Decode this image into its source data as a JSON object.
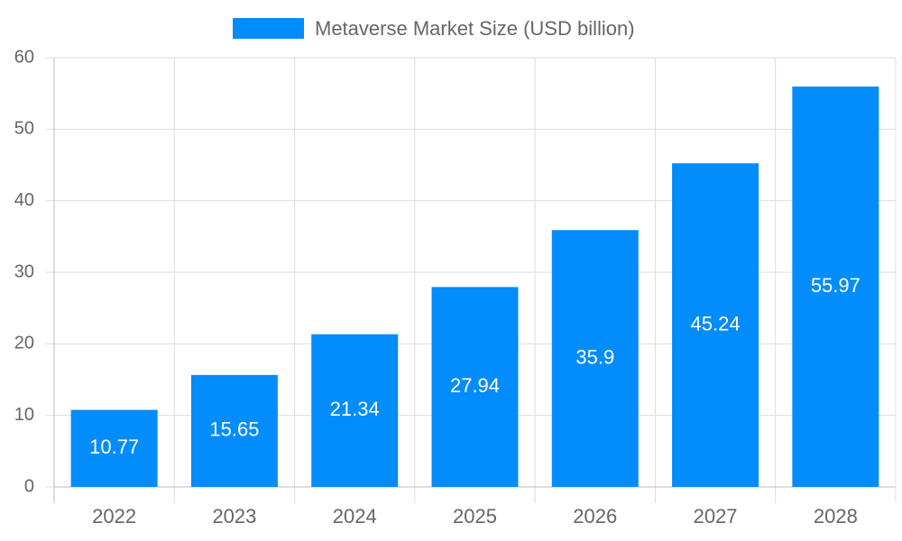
{
  "chart_data": {
    "type": "bar",
    "categories": [
      "2022",
      "2023",
      "2024",
      "2025",
      "2026",
      "2027",
      "2028"
    ],
    "series": [
      {
        "name": "Metaverse Market Size (USD billion)",
        "color": "#038cfb",
        "values": [
          10.77,
          15.65,
          21.34,
          27.94,
          35.9,
          45.24,
          55.97
        ]
      }
    ],
    "ylim": [
      0,
      60
    ],
    "yticks": [
      0,
      10,
      20,
      30,
      40,
      50,
      60
    ],
    "grid": true,
    "legend": "top",
    "data_labels": true
  }
}
